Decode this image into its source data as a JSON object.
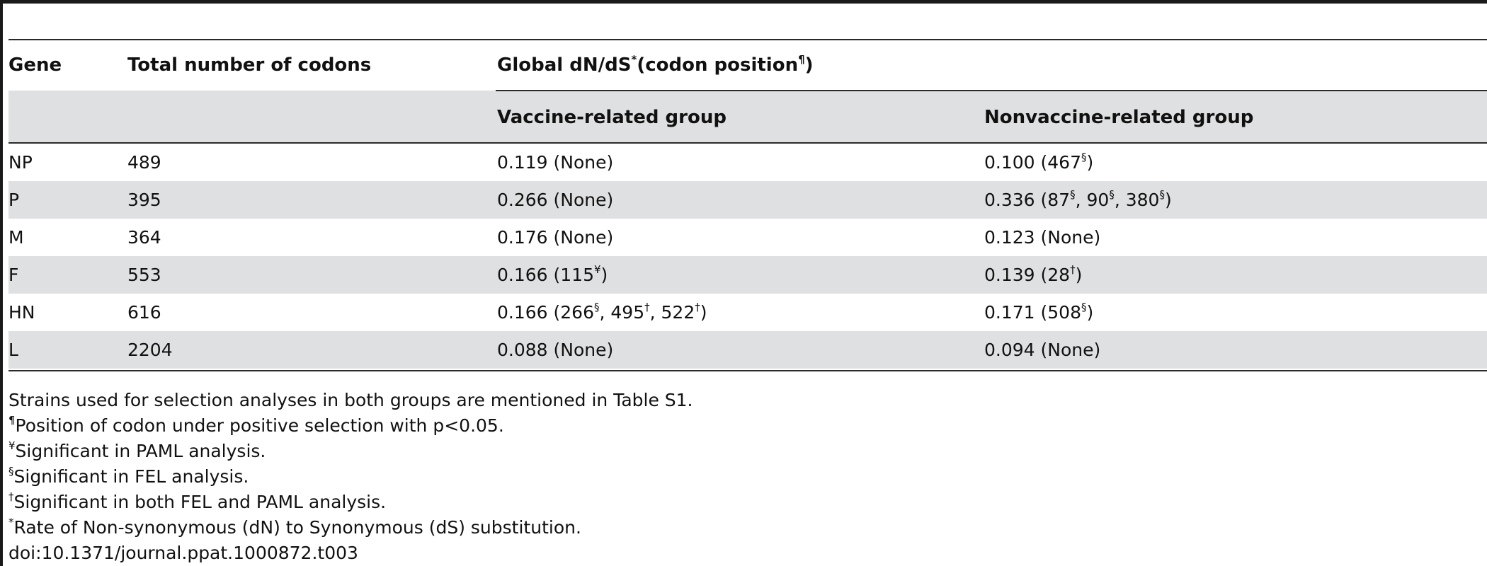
{
  "table": {
    "headers": {
      "gene": "Gene",
      "total_codons": "Total number of codons",
      "global_prefix": "Global dN/dS",
      "global_sup1": "*",
      "global_middle": "(codon position",
      "global_sup2": "¶",
      "global_suffix": ")",
      "vaccine_group": "Vaccine-related group",
      "nonvaccine_group": "Nonvaccine-related group"
    },
    "rows": [
      {
        "gene": "NP",
        "codons": "489",
        "vaccine": [
          {
            "t": "0.119 (None)"
          }
        ],
        "nonvaccine": [
          {
            "t": "0.100 (467"
          },
          {
            "s": "§"
          },
          {
            "t": ")"
          }
        ]
      },
      {
        "gene": "P",
        "codons": "395",
        "vaccine": [
          {
            "t": "0.266 (None)"
          }
        ],
        "nonvaccine": [
          {
            "t": "0.336 (87"
          },
          {
            "s": "§"
          },
          {
            "t": ", 90"
          },
          {
            "s": "§"
          },
          {
            "t": ", 380"
          },
          {
            "s": "§"
          },
          {
            "t": ")"
          }
        ]
      },
      {
        "gene": "M",
        "codons": "364",
        "vaccine": [
          {
            "t": "0.176 (None)"
          }
        ],
        "nonvaccine": [
          {
            "t": "0.123 (None)"
          }
        ]
      },
      {
        "gene": "F",
        "codons": "553",
        "vaccine": [
          {
            "t": "0.166 (115"
          },
          {
            "s": "¥"
          },
          {
            "t": ")"
          }
        ],
        "nonvaccine": [
          {
            "t": "0.139 (28"
          },
          {
            "s": "†"
          },
          {
            "t": ")"
          }
        ]
      },
      {
        "gene": "HN",
        "codons": "616",
        "vaccine": [
          {
            "t": "0.166 (266"
          },
          {
            "s": "§"
          },
          {
            "t": ", 495"
          },
          {
            "s": "†"
          },
          {
            "t": ", 522"
          },
          {
            "s": "†"
          },
          {
            "t": ")"
          }
        ],
        "nonvaccine": [
          {
            "t": "0.171 (508"
          },
          {
            "s": "§"
          },
          {
            "t": ")"
          }
        ]
      },
      {
        "gene": "L",
        "codons": "2204",
        "vaccine": [
          {
            "t": "0.088 (None)"
          }
        ],
        "nonvaccine": [
          {
            "t": "0.094 (None)"
          }
        ]
      }
    ]
  },
  "footnotes": [
    {
      "sym": "",
      "text": "Strains used for selection analyses in both groups are mentioned in Table S1."
    },
    {
      "sym": "¶",
      "text": "Position of codon under positive selection with p<0.05."
    },
    {
      "sym": "¥",
      "text": "Significant in PAML analysis."
    },
    {
      "sym": "§",
      "text": "Significant in FEL analysis."
    },
    {
      "sym": "†",
      "text": "Significant in both FEL and PAML analysis."
    },
    {
      "sym": "*",
      "text": "Rate of Non-synonymous (dN) to Synonymous (dS) substitution."
    },
    {
      "sym": "",
      "text": "doi:10.1371/journal.ppat.1000872.t003"
    }
  ],
  "colors": {
    "band": "#dfe0e2",
    "rule": "#2a2a2a"
  }
}
